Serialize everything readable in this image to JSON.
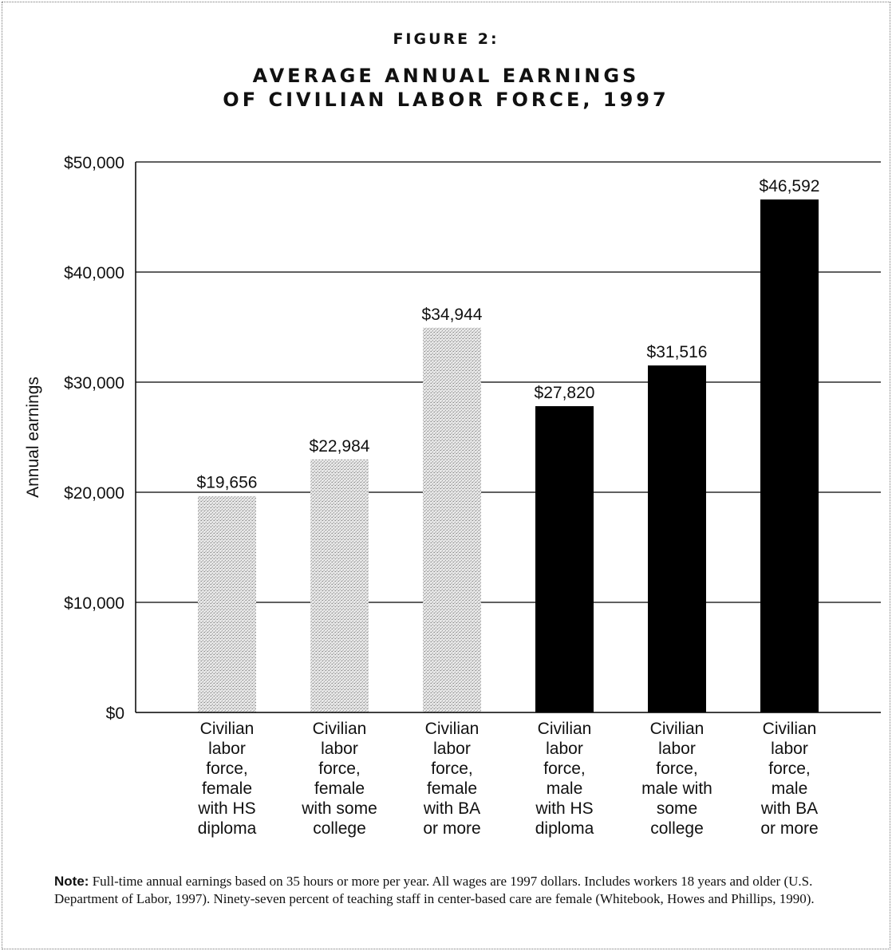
{
  "figure_label": "FIGURE 2:",
  "chart_data": {
    "type": "bar",
    "title_lines": [
      "AVERAGE ANNUAL EARNINGS",
      "OF CIVILIAN LABOR FORCE, 1997"
    ],
    "ylabel": "Annual earnings",
    "xlabel": "",
    "ylim": [
      0,
      50000
    ],
    "y_ticks": [
      0,
      10000,
      20000,
      30000,
      40000,
      50000
    ],
    "y_tick_labels": [
      "$0",
      "$10,000",
      "$20,000",
      "$30,000",
      "$40,000",
      "$50,000"
    ],
    "grid": true,
    "categories": [
      [
        "Civilian",
        "labor",
        "force,",
        "female",
        "with HS",
        "diploma"
      ],
      [
        "Civilian",
        "labor",
        "force,",
        "female",
        "with some",
        "college"
      ],
      [
        "Civilian",
        "labor",
        "force,",
        "female",
        "with BA",
        "or more"
      ],
      [
        "Civilian",
        "labor",
        "force,",
        "male",
        "with HS",
        "diploma"
      ],
      [
        "Civilian",
        "labor",
        "force,",
        "male with",
        "some",
        "college"
      ],
      [
        "Civilian",
        "labor",
        "force,",
        "male",
        "with BA",
        "or more"
      ]
    ],
    "values": [
      19656,
      22984,
      34944,
      27820,
      31516,
      46592
    ],
    "value_labels": [
      "$19,656",
      "$22,984",
      "$34,944",
      "$27,820",
      "$31,516",
      "$46,592"
    ],
    "bar_styles": [
      "stipple",
      "stipple",
      "stipple",
      "solid",
      "solid",
      "solid"
    ],
    "colors": {
      "solid": "#000000",
      "stipple": "#cfcfcf",
      "grid": "#000000"
    }
  },
  "note": {
    "label": "Note:",
    "text": "Full-time annual earnings based on 35 hours or more per year. All wages are 1997 dollars. Includes workers 18 years and older (U.S. Department of Labor, 1997). Ninety-seven percent of teaching staff in center-based care are female (Whitebook, Howes and Phillips, 1990)."
  }
}
